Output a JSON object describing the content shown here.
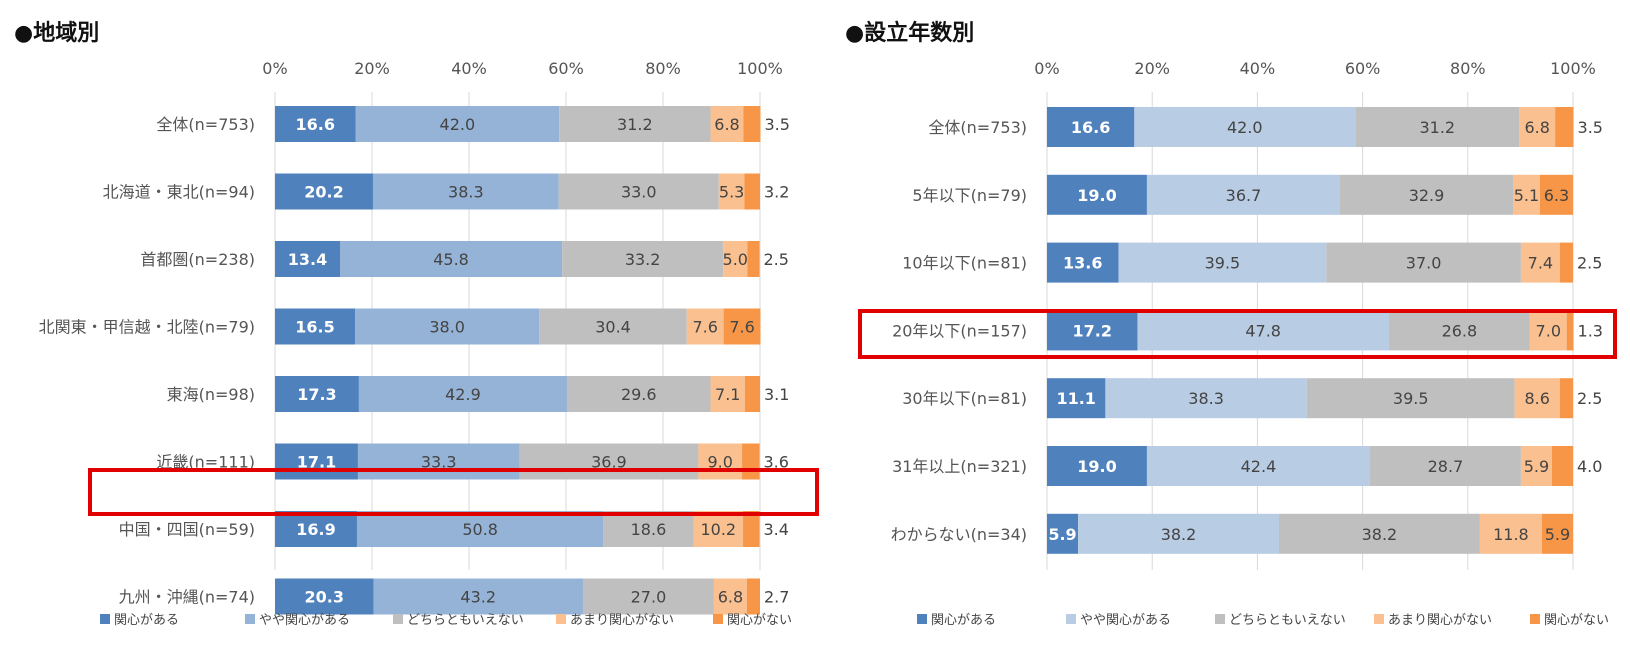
{
  "legend": [
    "関心がある",
    "やや関心がある",
    "どちらともいえない",
    "あまり関心がない",
    "関心がない"
  ],
  "chart_data": [
    {
      "type": "bar",
      "orientation": "horizontal",
      "stacked": true,
      "title": "●地域別",
      "xlim": [
        0,
        100
      ],
      "xticks": [
        "0%",
        "20%",
        "40%",
        "60%",
        "80%",
        "100%"
      ],
      "colors": [
        "#4f81bd",
        "#95b3d7",
        "#bfbfbf",
        "#fac090",
        "#f79646"
      ],
      "highlight": "中国・四国(n=59)",
      "categories": [
        "全体(n=753)",
        "北海道・東北(n=94)",
        "首都圏(n=238)",
        "北関東・甲信越・北陸(n=79)",
        "東海(n=98)",
        "近畿(n=111)",
        "中国・四国(n=59)",
        "九州・沖縄(n=74)"
      ],
      "series": [
        {
          "name": "関心がある",
          "values": [
            16.6,
            20.2,
            13.4,
            16.5,
            17.3,
            17.1,
            16.9,
            20.3
          ]
        },
        {
          "name": "やや関心がある",
          "values": [
            42.0,
            38.3,
            45.8,
            38.0,
            42.9,
            33.3,
            50.8,
            43.2
          ]
        },
        {
          "name": "どちらともいえない",
          "values": [
            31.2,
            33.0,
            33.2,
            30.4,
            29.6,
            36.9,
            18.6,
            27.0
          ]
        },
        {
          "name": "あまり関心がない",
          "values": [
            6.8,
            5.3,
            5.0,
            7.6,
            7.1,
            9.0,
            10.2,
            6.8
          ]
        },
        {
          "name": "関心がない",
          "values": [
            3.5,
            3.2,
            2.5,
            7.6,
            3.1,
            3.6,
            3.4,
            2.7
          ]
        }
      ]
    },
    {
      "type": "bar",
      "orientation": "horizontal",
      "stacked": true,
      "title": "●設立年数別",
      "xlim": [
        0,
        100
      ],
      "xticks": [
        "0%",
        "20%",
        "40%",
        "60%",
        "80%",
        "100%"
      ],
      "colors": [
        "#4f81bd",
        "#b8cce4",
        "#bfbfbf",
        "#fac090",
        "#f79646"
      ],
      "highlight": "20年以下(n=157)",
      "categories": [
        "全体(n=753)",
        "5年以下(n=79)",
        "10年以下(n=81)",
        "20年以下(n=157)",
        "30年以下(n=81)",
        "31年以上(n=321)",
        "わからない(n=34)"
      ],
      "series": [
        {
          "name": "関心がある",
          "values": [
            16.6,
            19.0,
            13.6,
            17.2,
            11.1,
            19.0,
            5.9
          ]
        },
        {
          "name": "やや関心がある",
          "values": [
            42.0,
            36.7,
            39.5,
            47.8,
            38.3,
            42.4,
            38.2
          ]
        },
        {
          "name": "どちらともいえない",
          "values": [
            31.2,
            32.9,
            37.0,
            26.8,
            39.5,
            28.7,
            38.2
          ]
        },
        {
          "name": "あまり関心がない",
          "values": [
            6.8,
            5.1,
            7.4,
            7.0,
            8.6,
            5.9,
            11.8
          ]
        },
        {
          "name": "関心がない",
          "values": [
            3.5,
            6.3,
            2.5,
            1.3,
            2.5,
            4.0,
            5.9
          ]
        }
      ]
    }
  ]
}
